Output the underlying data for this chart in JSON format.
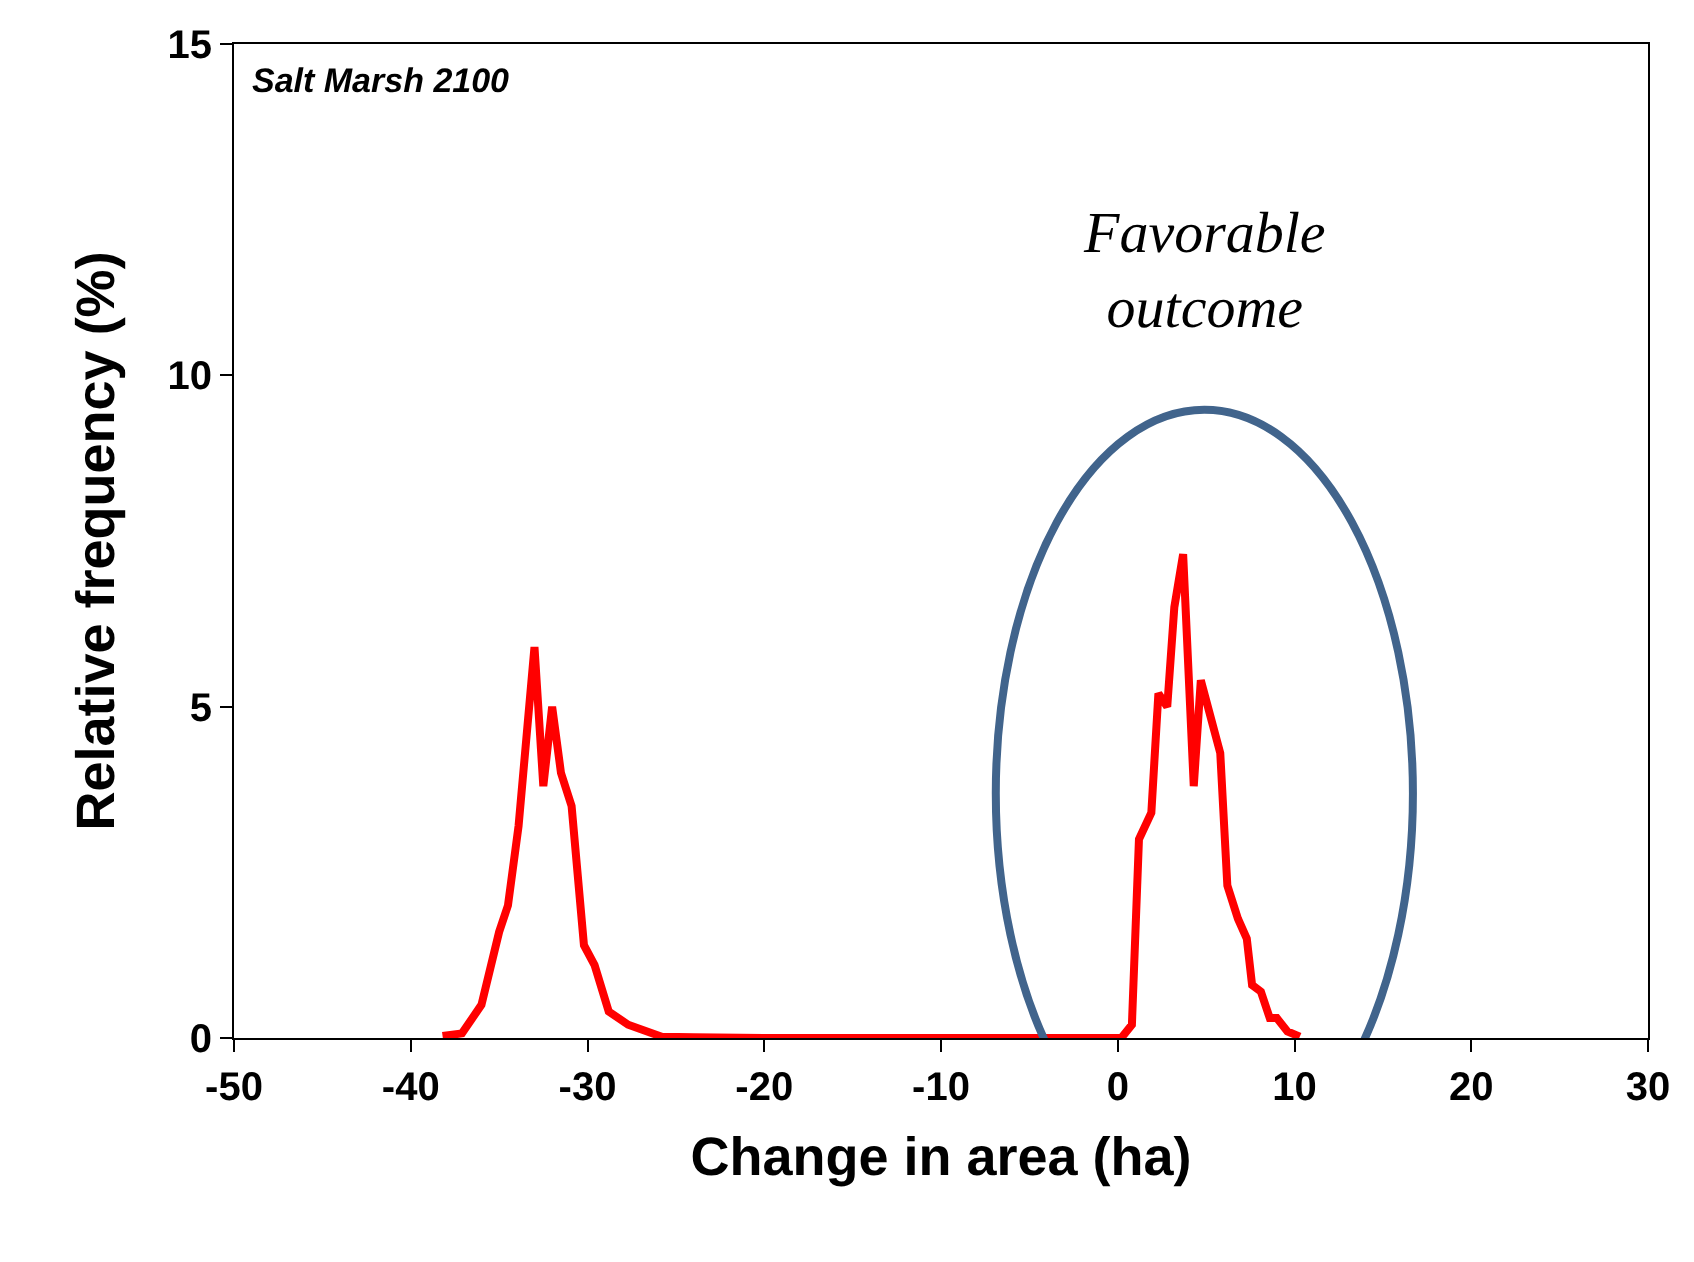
{
  "chart_data": {
    "type": "line",
    "xlabel": "Change in area (ha)",
    "ylabel": "Relative frequency (%)",
    "xlim": [
      -50,
      30
    ],
    "xticks": [
      -50,
      -40,
      -30,
      -20,
      -10,
      0,
      10,
      20,
      30
    ],
    "ylim": [
      0,
      15
    ],
    "yticks": [
      0,
      5,
      10,
      15
    ],
    "marker": "none",
    "line_style": "solid",
    "series": [
      {
        "color": "#ff0000",
        "x": [
          -38.2,
          -37.1,
          -36.0,
          -35.0,
          -34.5,
          -33.9,
          -33.0,
          -32.5,
          -32.0,
          -31.5,
          -30.9,
          -30.2,
          -29.6,
          -28.8,
          -27.7,
          -25.8,
          -24,
          -20,
          -10,
          -2.4,
          0.2,
          0.8,
          1.2,
          1.9,
          2.3,
          2.8,
          3.2,
          3.7,
          4.3,
          4.7,
          5.3,
          5.8,
          6.2,
          6.8,
          7.3,
          7.6,
          8.1,
          8.6,
          9.0,
          9.6,
          10.3
        ],
        "values": [
          0.03,
          0.07,
          0.5,
          1.6,
          2.0,
          3.2,
          5.9,
          3.8,
          5.0,
          4.0,
          3.5,
          1.4,
          1.1,
          0.4,
          0.2,
          0.02,
          0.01,
          0,
          0,
          0,
          0,
          0.2,
          3.0,
          3.4,
          5.2,
          5.0,
          6.5,
          7.3,
          3.8,
          5.4,
          4.8,
          4.3,
          2.3,
          1.8,
          1.5,
          0.8,
          0.7,
          0.3,
          0.3,
          0.1,
          0.02
        ]
      }
    ],
    "annotations": [
      "Salt Marsh 2100",
      "Favorable\noutcome"
    ]
  }
}
